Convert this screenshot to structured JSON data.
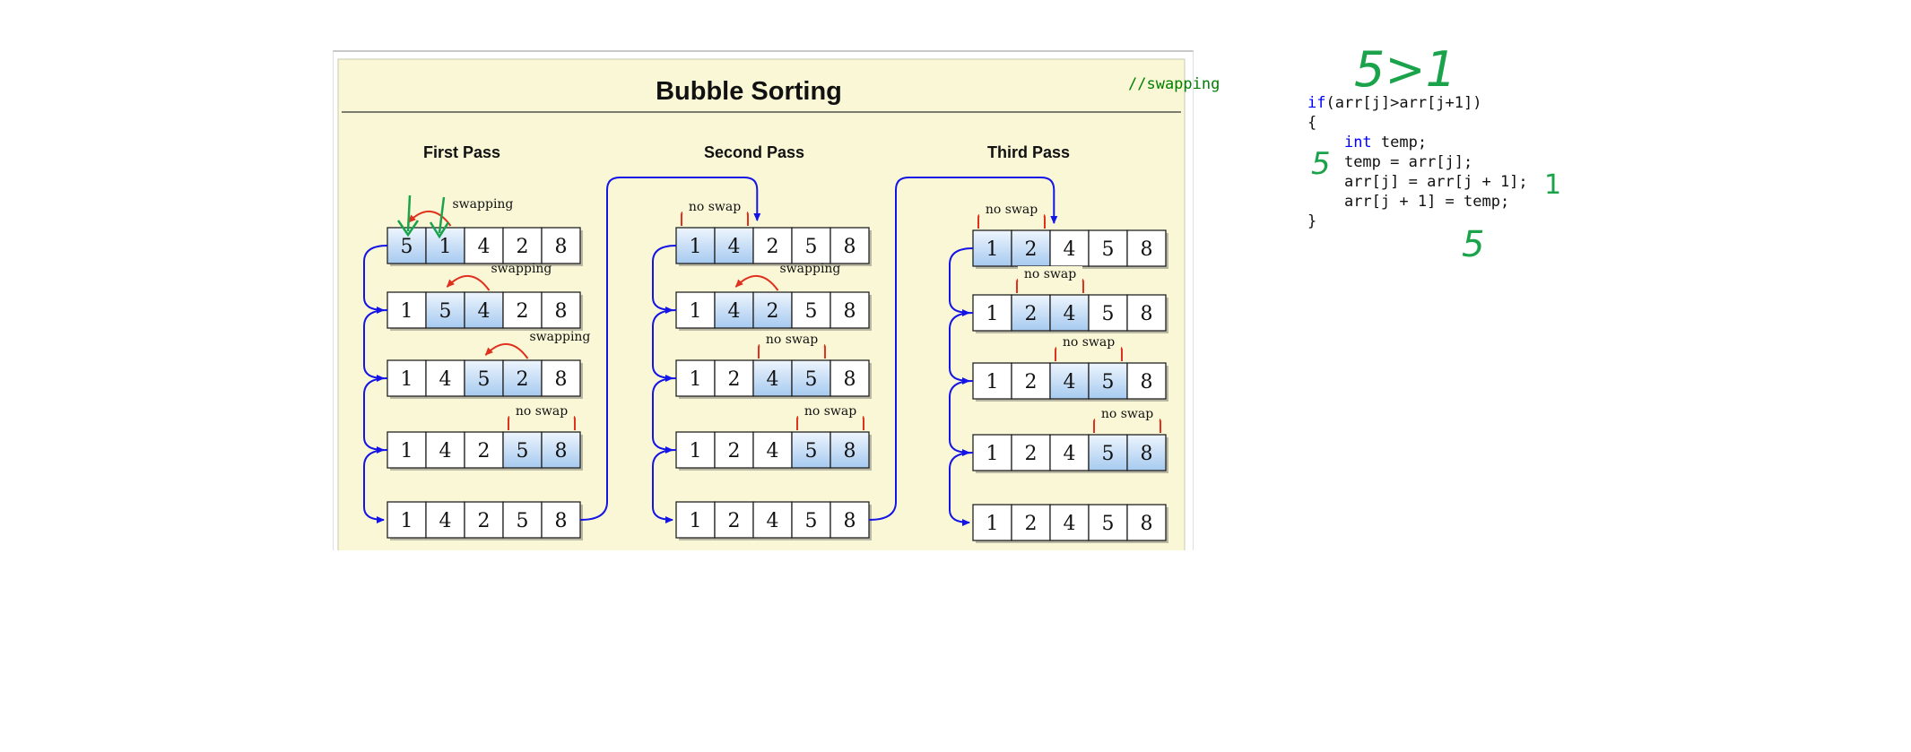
{
  "diagram": {
    "title": "Bubble  Sorting",
    "passes": [
      {
        "label": "First Pass",
        "rows": [
          {
            "values": [
              "5",
              "1",
              "4",
              "2",
              "8"
            ],
            "highlight": [
              0,
              1
            ],
            "annotation": "swapping",
            "kind": "swap"
          },
          {
            "values": [
              "1",
              "5",
              "4",
              "2",
              "8"
            ],
            "highlight": [
              1,
              2
            ],
            "annotation": "swapping",
            "kind": "swap"
          },
          {
            "values": [
              "1",
              "4",
              "5",
              "2",
              "8"
            ],
            "highlight": [
              2,
              3
            ],
            "annotation": "swapping",
            "kind": "swap"
          },
          {
            "values": [
              "1",
              "4",
              "2",
              "5",
              "8"
            ],
            "highlight": [
              3,
              4
            ],
            "annotation": "no swap",
            "kind": "noswap"
          },
          {
            "values": [
              "1",
              "4",
              "2",
              "5",
              "8"
            ],
            "highlight": [],
            "annotation": null,
            "kind": null
          }
        ]
      },
      {
        "label": "Second Pass",
        "rows": [
          {
            "values": [
              "1",
              "4",
              "2",
              "5",
              "8"
            ],
            "highlight": [
              0,
              1
            ],
            "annotation": "no swap",
            "kind": "noswap"
          },
          {
            "values": [
              "1",
              "4",
              "2",
              "5",
              "8"
            ],
            "highlight": [
              1,
              2
            ],
            "annotation": "swapping",
            "kind": "swap"
          },
          {
            "values": [
              "1",
              "2",
              "4",
              "5",
              "8"
            ],
            "highlight": [
              2,
              3
            ],
            "annotation": "no swap",
            "kind": "noswap"
          },
          {
            "values": [
              "1",
              "2",
              "4",
              "5",
              "8"
            ],
            "highlight": [
              3,
              4
            ],
            "annotation": "no swap",
            "kind": "noswap"
          },
          {
            "values": [
              "1",
              "2",
              "4",
              "5",
              "8"
            ],
            "highlight": [],
            "annotation": null,
            "kind": null
          }
        ]
      },
      {
        "label": "Third Pass",
        "rows": [
          {
            "values": [
              "1",
              "2",
              "4",
              "5",
              "8"
            ],
            "highlight": [
              0,
              1
            ],
            "annotation": "no swap",
            "kind": "noswap"
          },
          {
            "values": [
              "1",
              "2",
              "4",
              "5",
              "8"
            ],
            "highlight": [
              1,
              2
            ],
            "annotation": "no swap",
            "kind": "noswap"
          },
          {
            "values": [
              "1",
              "2",
              "4",
              "5",
              "8"
            ],
            "highlight": [
              2,
              3
            ],
            "annotation": "no swap",
            "kind": "noswap"
          },
          {
            "values": [
              "1",
              "2",
              "4",
              "5",
              "8"
            ],
            "highlight": [
              3,
              4
            ],
            "annotation": "no swap",
            "kind": "noswap"
          },
          {
            "values": [
              "1",
              "2",
              "4",
              "5",
              "8"
            ],
            "highlight": [],
            "annotation": null,
            "kind": null
          }
        ]
      }
    ]
  },
  "code": {
    "comment": "//swapping",
    "lines": [
      {
        "keyword": "",
        "text": "if(arr[j]>arr[j+1])",
        "lead_keyword": "if",
        "rest": "(arr[j]>arr[j+1])"
      },
      {
        "lead_keyword": "",
        "rest": "{"
      },
      {
        "lead_keyword": "int",
        "rest": " temp;",
        "indent": "    "
      },
      {
        "lead_keyword": "",
        "rest": "temp = arr[j];",
        "indent": "    "
      },
      {
        "lead_keyword": "",
        "rest": "arr[j] = arr[j + 1];",
        "indent": "    "
      },
      {
        "lead_keyword": "",
        "rest": "arr[j + 1] = temp;",
        "indent": "    "
      },
      {
        "lead_keyword": "",
        "rest": "}"
      }
    ]
  },
  "handwriting": {
    "condition": "5>1",
    "temp_value": "5",
    "arr_j_value": "1",
    "arr_j1_value": "5"
  },
  "colors": {
    "panel_bg": "#faf7d6",
    "cell_highlight_top": "#e9f2fc",
    "cell_highlight_bottom": "#a9cdf2",
    "arrow_blue": "#1414e6",
    "arrow_red": "#e0301e",
    "ink_green": "#1aa34a",
    "code_keyword": "#0000ff",
    "code_comment": "#008000"
  }
}
